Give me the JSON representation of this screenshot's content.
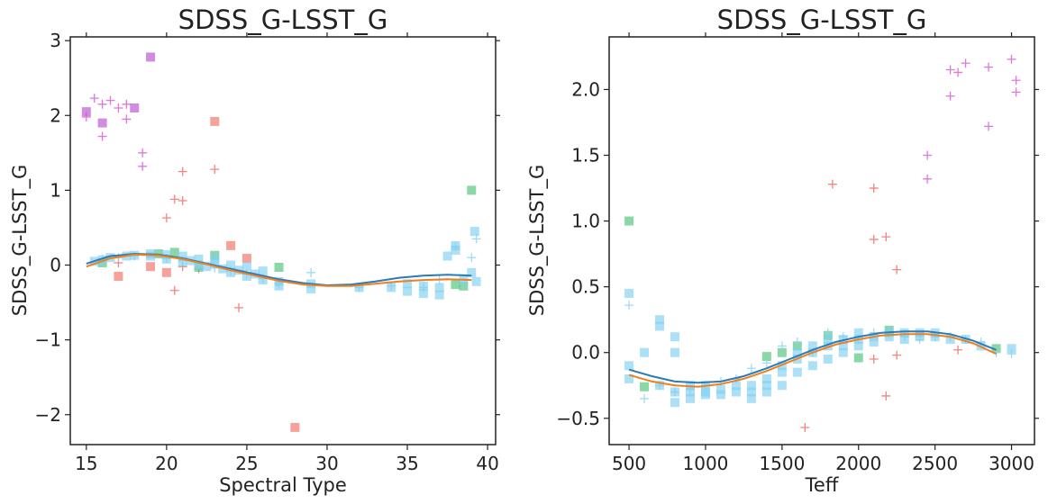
{
  "chart_data": [
    {
      "type": "scatter",
      "title": "SDSS_G-LSST_G",
      "xlabel": "Spectral Type",
      "ylabel": "SDSS_G-LSST_G",
      "xlim": [
        14,
        40.5
      ],
      "ylim": [
        -2.4,
        3.05
      ],
      "xticks": [
        15,
        20,
        25,
        30,
        35,
        40
      ],
      "yticks": [
        -2,
        -1,
        0,
        1,
        2,
        3
      ],
      "xtick_labels": [
        "15",
        "20",
        "25",
        "30",
        "35",
        "40"
      ],
      "ytick_labels": [
        "−2",
        "−1",
        "0",
        "1",
        "2",
        "3"
      ],
      "grid": false,
      "series": [
        {
          "color": "#d85fd8",
          "marker": "plus",
          "x": [
            15,
            15.5,
            16,
            16,
            16.5,
            17,
            17.5,
            17.5,
            18.5,
            18.5
          ],
          "y": [
            1.98,
            2.23,
            1.72,
            2.15,
            2.2,
            2.1,
            1.95,
            2.15,
            1.5,
            1.32
          ]
        },
        {
          "color": "#b84fd0",
          "marker": "square",
          "x": [
            15,
            16,
            18,
            19
          ],
          "y": [
            2.05,
            1.9,
            2.1,
            2.78
          ]
        },
        {
          "color": "#f26f66",
          "marker": "plus",
          "x": [
            17,
            20,
            20.5,
            21,
            21,
            23,
            24.5,
            20.5,
            21,
            22
          ],
          "y": [
            0.03,
            0.63,
            0.88,
            0.86,
            1.25,
            1.28,
            -0.57,
            -0.34,
            -0.02,
            -0.05
          ]
        },
        {
          "color": "#f26f66",
          "marker": "square",
          "x": [
            17,
            19,
            20,
            23,
            24,
            25,
            28
          ],
          "y": [
            -0.15,
            -0.02,
            -0.1,
            1.92,
            0.26,
            0.09,
            -2.17
          ]
        },
        {
          "color": "#4cc27a",
          "marker": "square",
          "x": [
            16,
            19.5,
            20.5,
            22,
            23,
            27,
            38,
            38.5,
            39
          ],
          "y": [
            0.03,
            0.15,
            0.17,
            -0.03,
            0.13,
            -0.03,
            -0.26,
            -0.28,
            1.0
          ]
        },
        {
          "color": "#8fd4f2",
          "marker": "plus",
          "x": [
            16,
            17,
            18,
            20,
            21,
            22,
            23,
            24,
            25,
            26,
            27,
            29,
            32,
            34,
            36,
            37,
            38,
            39,
            39.3
          ],
          "y": [
            0.08,
            0.1,
            0.12,
            0.09,
            0.06,
            0.0,
            -0.04,
            -0.08,
            -0.12,
            -0.18,
            -0.25,
            -0.1,
            -0.3,
            -0.28,
            -0.3,
            -0.2,
            0.25,
            0.1,
            0.35
          ]
        },
        {
          "color": "#7fd0f2",
          "marker": "square",
          "x": [
            15.5,
            16,
            16.5,
            17.5,
            18,
            19,
            19,
            20,
            20,
            21,
            21,
            21.5,
            22,
            22,
            22.5,
            23,
            23,
            23.5,
            24,
            24,
            24.5,
            25,
            25,
            25.5,
            26,
            26,
            27,
            27,
            29,
            29,
            32,
            34,
            35,
            35,
            36,
            36,
            37,
            37,
            37.5,
            38,
            38,
            38.5,
            39,
            39.2,
            39.3
          ],
          "y": [
            0.05,
            0.07,
            0.1,
            0.12,
            0.13,
            0.12,
            0.15,
            0.08,
            0.14,
            0.04,
            0.12,
            0.06,
            0.0,
            0.08,
            -0.02,
            0.02,
            0.08,
            -0.05,
            0.0,
            -0.1,
            -0.07,
            -0.02,
            -0.15,
            -0.12,
            -0.08,
            -0.2,
            -0.22,
            -0.28,
            -0.25,
            -0.32,
            -0.3,
            -0.3,
            -0.25,
            -0.35,
            -0.28,
            -0.38,
            -0.3,
            -0.4,
            0.12,
            0.2,
            0.26,
            -0.2,
            -0.1,
            0.45,
            -0.22
          ]
        }
      ],
      "lines": [
        {
          "color": "#2b7bb9",
          "x": [
            15,
            16.5,
            18,
            19.5,
            21,
            22.5,
            24,
            25.5,
            27,
            28.5,
            30,
            31.5,
            33,
            34.5,
            36,
            37.5,
            39
          ],
          "y": [
            0.02,
            0.12,
            0.15,
            0.14,
            0.09,
            0.02,
            -0.05,
            -0.12,
            -0.19,
            -0.24,
            -0.27,
            -0.26,
            -0.22,
            -0.17,
            -0.14,
            -0.13,
            -0.14
          ]
        },
        {
          "color": "#f07f1e",
          "x": [
            15,
            16.5,
            18,
            19.5,
            21,
            22.5,
            24,
            25.5,
            27,
            28.5,
            30,
            31.5,
            33,
            34.5,
            36,
            37.5,
            39
          ],
          "y": [
            -0.02,
            0.09,
            0.14,
            0.13,
            0.08,
            0.01,
            -0.07,
            -0.14,
            -0.21,
            -0.26,
            -0.28,
            -0.28,
            -0.25,
            -0.22,
            -0.2,
            -0.19,
            -0.2
          ]
        }
      ]
    },
    {
      "type": "scatter",
      "title": "SDSS_G-LSST_G",
      "xlabel": "Teff",
      "ylabel": "SDSS_G-LSST_G",
      "xlim": [
        370,
        3150
      ],
      "ylim": [
        -0.7,
        2.4
      ],
      "xticks": [
        500,
        1000,
        1500,
        2000,
        2500,
        3000
      ],
      "yticks": [
        -0.5,
        0.0,
        0.5,
        1.0,
        1.5,
        2.0
      ],
      "xtick_labels": [
        "500",
        "1000",
        "1500",
        "2000",
        "2500",
        "3000"
      ],
      "ytick_labels": [
        "−0.5",
        "0.0",
        "0.5",
        "1.0",
        "1.5",
        "2.0"
      ],
      "grid": false,
      "series": [
        {
          "color": "#d85fd8",
          "marker": "plus",
          "x": [
            2450,
            2450,
            2600,
            2600,
            2650,
            2700,
            2850,
            2850,
            3000,
            3030,
            3030
          ],
          "y": [
            1.5,
            1.32,
            2.15,
            1.95,
            2.13,
            2.2,
            2.17,
            1.72,
            2.23,
            2.07,
            1.98
          ]
        },
        {
          "color": "#f26f66",
          "marker": "plus",
          "x": [
            1650,
            1830,
            2100,
            2100,
            2180,
            2180,
            2250,
            2250,
            2100,
            2650
          ],
          "y": [
            -0.57,
            1.28,
            1.25,
            0.86,
            0.88,
            -0.33,
            0.63,
            -0.02,
            -0.05,
            0.02
          ]
        },
        {
          "color": "#4cc27a",
          "marker": "square",
          "x": [
            500,
            600,
            1400,
            1500,
            1600,
            1800,
            2000,
            2200,
            2900
          ],
          "y": [
            1.0,
            -0.26,
            -0.03,
            0.0,
            0.05,
            0.13,
            -0.04,
            0.17,
            0.03
          ]
        },
        {
          "color": "#8fd4f2",
          "marker": "plus",
          "x": [
            500,
            600,
            700,
            800,
            900,
            1000,
            1100,
            1200,
            1300,
            1400,
            1500,
            1600,
            1700,
            1800,
            1900,
            2000,
            2100,
            2200,
            2300,
            2400,
            2500,
            2600,
            2700,
            2800,
            2900,
            3000
          ],
          "y": [
            0.36,
            -0.35,
            -0.25,
            -0.3,
            -0.28,
            -0.25,
            -0.22,
            -0.2,
            -0.12,
            -0.08,
            0.05,
            0.08,
            0.0,
            0.15,
            0.12,
            0.1,
            0.15,
            0.14,
            0.12,
            0.1,
            0.12,
            0.12,
            0.1,
            0.08,
            0.0,
            -0.01
          ]
        },
        {
          "color": "#7fd0f2",
          "marker": "square",
          "x": [
            500,
            500,
            500,
            600,
            700,
            700,
            700,
            800,
            800,
            800,
            800,
            900,
            900,
            900,
            1000,
            1000,
            1000,
            1100,
            1100,
            1200,
            1200,
            1300,
            1300,
            1300,
            1400,
            1400,
            1400,
            1500,
            1500,
            1500,
            1600,
            1600,
            1600,
            1700,
            1700,
            1700,
            1800,
            1800,
            1800,
            1900,
            1900,
            1900,
            2000,
            2000,
            2000,
            2100,
            2100,
            2200,
            2200,
            2300,
            2300,
            2400,
            2400,
            2500,
            2500,
            2600,
            2700,
            2800,
            3000
          ],
          "y": [
            0.45,
            -0.1,
            -0.2,
            0.0,
            0.25,
            0.2,
            -0.25,
            0.12,
            0.0,
            -0.3,
            -0.38,
            -0.3,
            -0.35,
            -0.25,
            -0.3,
            -0.25,
            -0.32,
            -0.28,
            -0.32,
            -0.25,
            -0.3,
            -0.3,
            -0.35,
            -0.25,
            -0.2,
            -0.3,
            -0.25,
            -0.15,
            -0.1,
            -0.25,
            -0.05,
            0.0,
            -0.15,
            0.0,
            0.05,
            -0.1,
            0.05,
            0.1,
            -0.05,
            0.05,
            0.1,
            0.0,
            0.1,
            0.05,
            0.15,
            0.12,
            0.08,
            0.15,
            0.12,
            0.15,
            0.1,
            0.15,
            0.12,
            0.15,
            0.12,
            0.1,
            0.1,
            0.05,
            0.03
          ]
        }
      ],
      "lines": [
        {
          "color": "#2b7bb9",
          "x": [
            500,
            650,
            800,
            950,
            1100,
            1250,
            1400,
            1550,
            1700,
            1850,
            2000,
            2150,
            2300,
            2450,
            2600,
            2750,
            2900
          ],
          "y": [
            -0.13,
            -0.18,
            -0.22,
            -0.23,
            -0.22,
            -0.18,
            -0.12,
            -0.05,
            0.02,
            0.08,
            0.12,
            0.15,
            0.16,
            0.16,
            0.14,
            0.09,
            0.02
          ]
        },
        {
          "color": "#f07f1e",
          "x": [
            500,
            650,
            800,
            950,
            1100,
            1250,
            1400,
            1550,
            1700,
            1850,
            2000,
            2150,
            2300,
            2450,
            2600,
            2750,
            2900
          ],
          "y": [
            -0.17,
            -0.22,
            -0.25,
            -0.26,
            -0.24,
            -0.2,
            -0.14,
            -0.07,
            0.0,
            0.06,
            0.1,
            0.13,
            0.14,
            0.14,
            0.12,
            0.07,
            -0.01
          ]
        }
      ]
    }
  ]
}
